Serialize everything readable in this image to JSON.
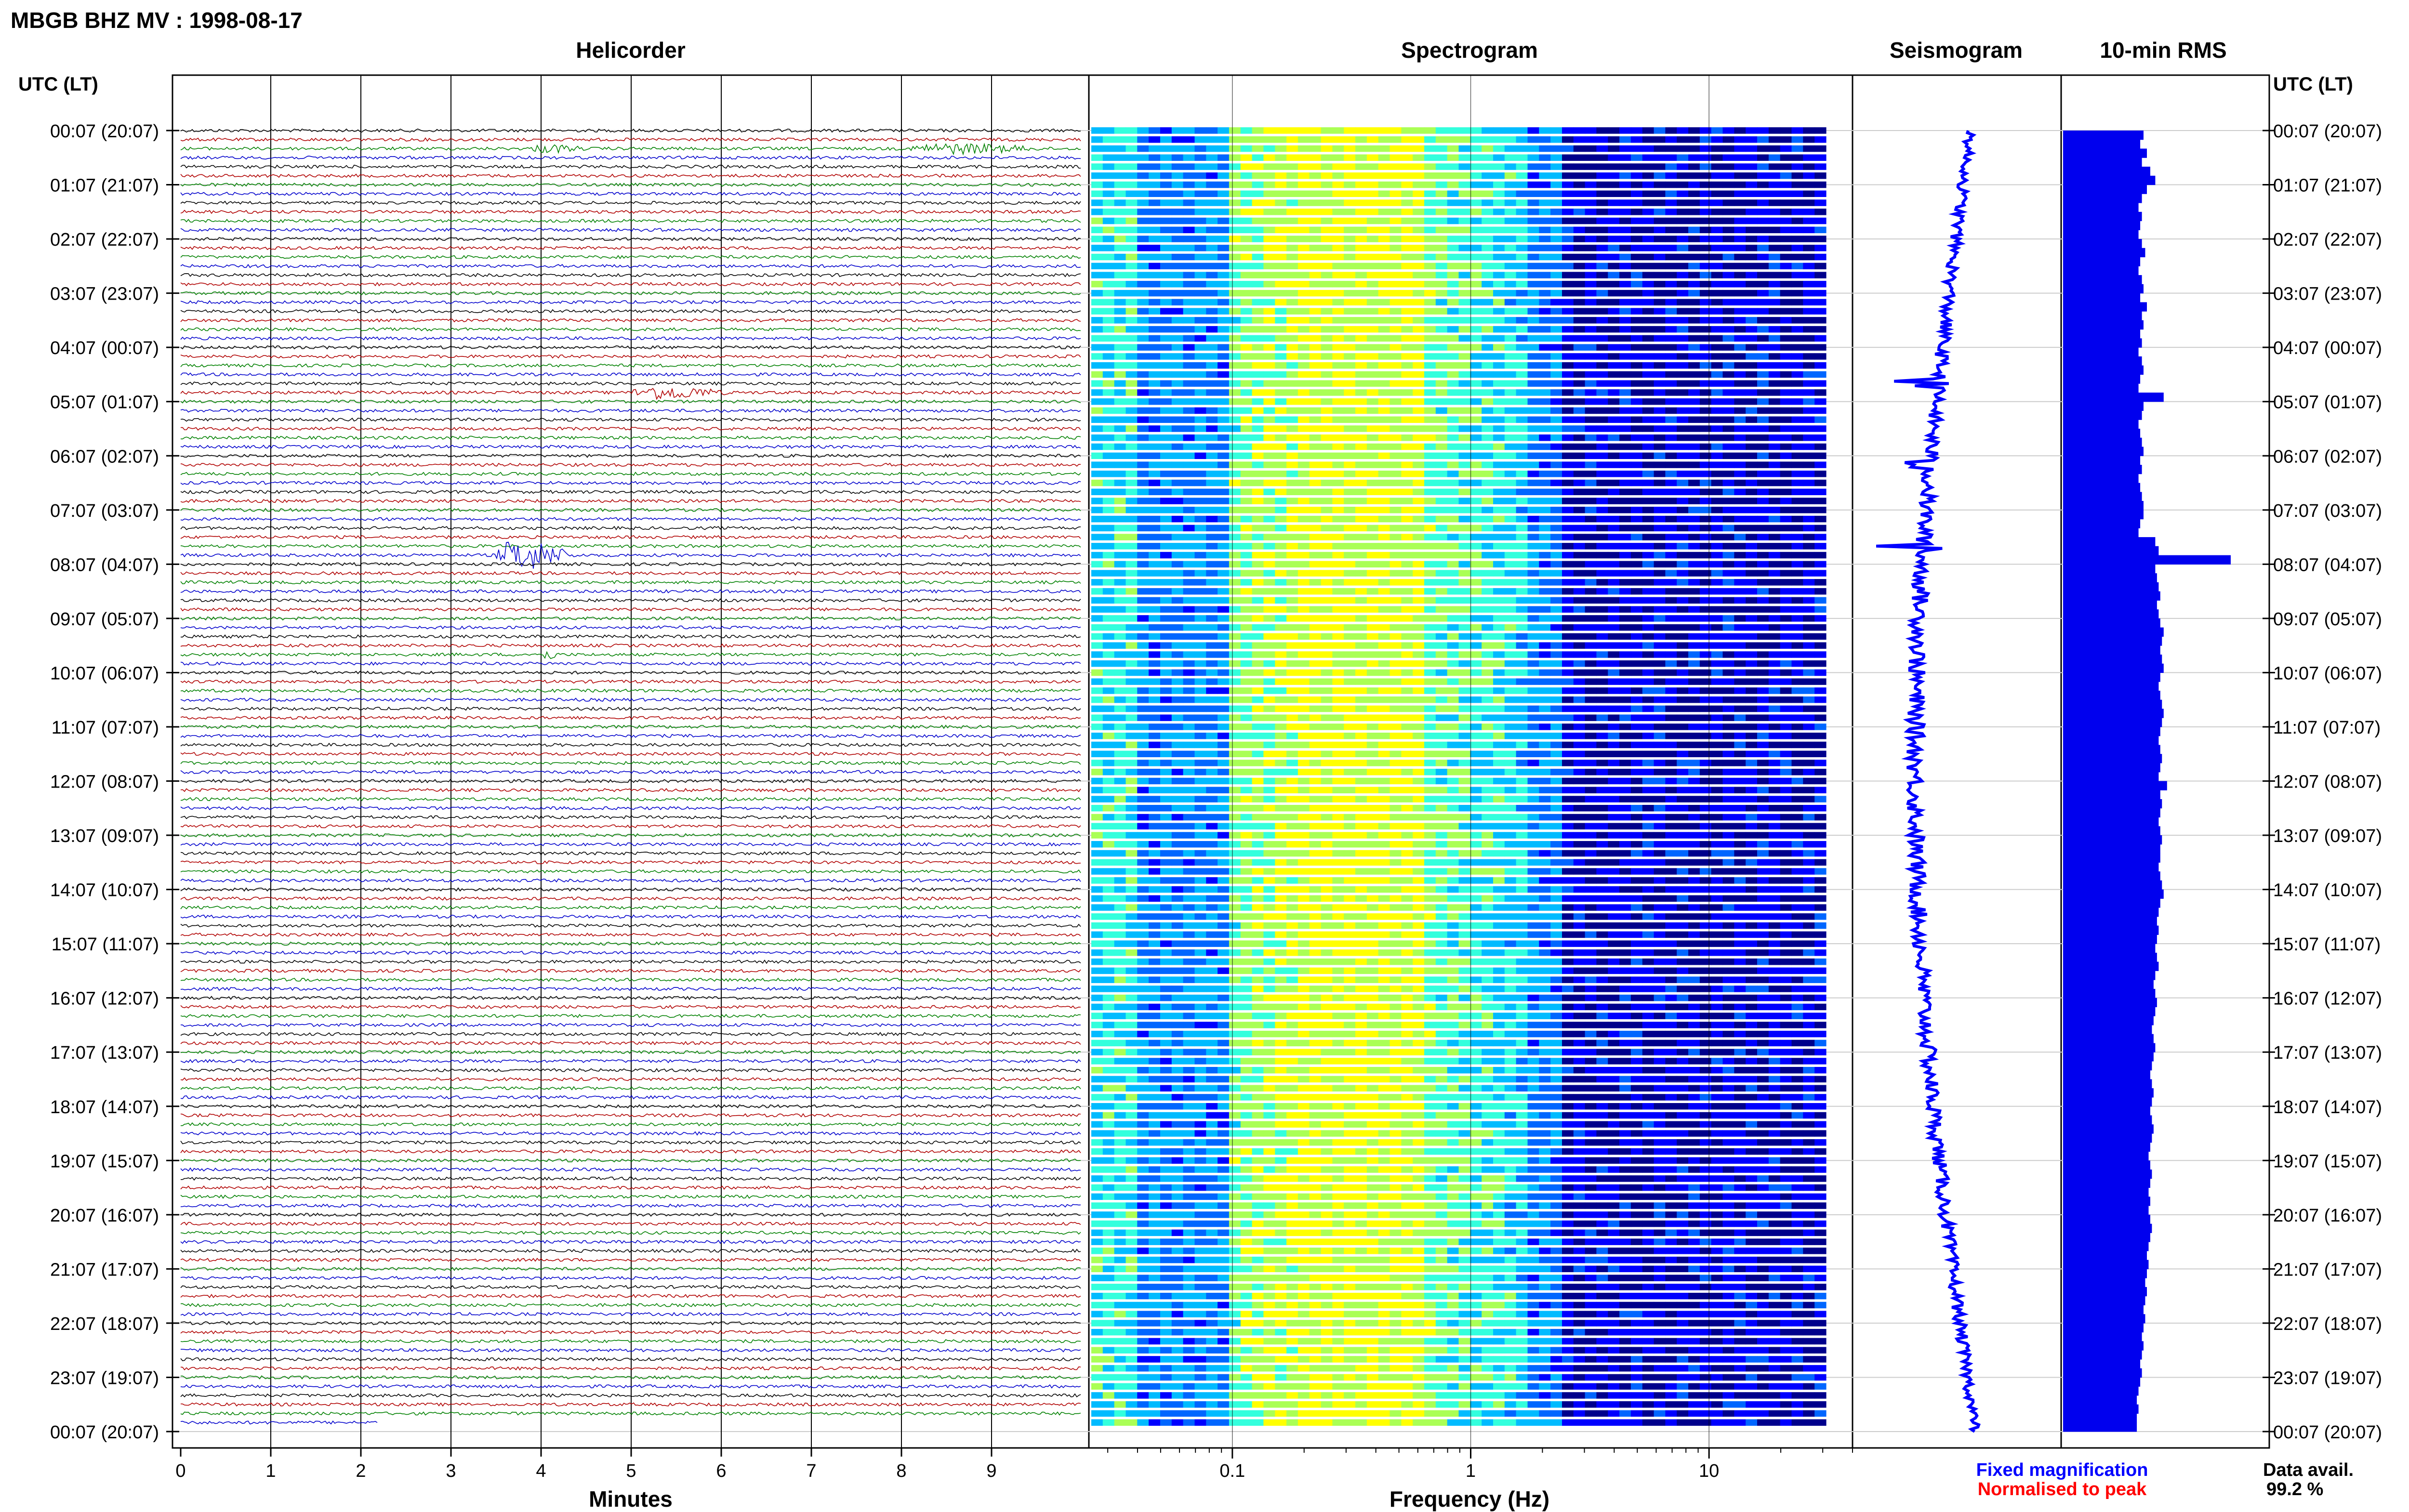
{
  "header": {
    "title": "MBGB BHZ MV : 1998-08-17"
  },
  "time_axis": {
    "header": "UTC (LT)",
    "labels": [
      "00:07 (20:07)",
      "01:07 (21:07)",
      "02:07 (22:07)",
      "03:07 (23:07)",
      "04:07 (00:07)",
      "05:07 (01:07)",
      "06:07 (02:07)",
      "07:07 (03:07)",
      "08:07 (04:07)",
      "09:07 (05:07)",
      "10:07 (06:07)",
      "11:07 (07:07)",
      "12:07 (08:07)",
      "13:07 (09:07)",
      "14:07 (10:07)",
      "15:07 (11:07)",
      "16:07 (12:07)",
      "17:07 (13:07)",
      "18:07 (14:07)",
      "19:07 (15:07)",
      "20:07 (16:07)",
      "21:07 (17:07)",
      "22:07 (18:07)",
      "23:07 (19:07)",
      "00:07 (20:07)"
    ]
  },
  "legend": {
    "fixed": "Fixed magnification",
    "normalised": "Normalised to peak",
    "fixed_color": "#0000ff",
    "normalised_color": "#ff0000"
  },
  "data_avail": {
    "label": "Data avail.",
    "value": "99.2 %"
  },
  "chart_data": [
    {
      "type": "line",
      "panel": "helicorder",
      "title": "Helicorder",
      "xlabel": "Minutes",
      "xlim": [
        0,
        10
      ],
      "ticks": [
        "0",
        "1",
        "2",
        "3",
        "4",
        "5",
        "6",
        "7",
        "8",
        "9"
      ],
      "rows_per_hour": 6,
      "total_rows": 144,
      "trace_colors": [
        "#000000",
        "#b00000",
        "#008000",
        "#0000cc"
      ],
      "events": [
        {
          "row": 2,
          "minute": 3.9,
          "duration": 0.6,
          "amp": 2.2
        },
        {
          "row": 2,
          "minute": 8.1,
          "duration": 1.5,
          "amp": 3.0
        },
        {
          "row": 29,
          "minute": 5.0,
          "duration": 1.1,
          "amp": 4.0
        },
        {
          "row": 47,
          "minute": 3.5,
          "duration": 0.9,
          "amp": 10.0
        },
        {
          "row": 58,
          "minute": 4.0,
          "duration": 0.2,
          "amp": 3.0
        }
      ]
    },
    {
      "type": "heatmap",
      "panel": "spectrogram",
      "title": "Spectrogram",
      "xlabel": "Frequency (Hz)",
      "scale": "log",
      "xlim": [
        0.025,
        40
      ],
      "ticks": [
        0.1,
        1,
        10
      ],
      "tick_labels": [
        "0.1",
        "1",
        "10"
      ],
      "rows": 144,
      "colormap": [
        "#00008c",
        "#0000ff",
        "#0066ff",
        "#00bbff",
        "#33ffdd",
        "#aaff55",
        "#ffff00"
      ]
    },
    {
      "type": "line",
      "panel": "seismogram",
      "title": "Seismogram",
      "note": "one sample per 10-min row; center drift shown",
      "events": [
        {
          "row": 28,
          "amp": 1.6
        },
        {
          "row": 37,
          "amp": 1.2
        },
        {
          "row": 46,
          "amp": 3.0
        }
      ]
    },
    {
      "type": "bar",
      "panel": "rms",
      "title": "10-min RMS",
      "rows": 144,
      "values": [
        0.48,
        0.46,
        0.5,
        0.47,
        0.52,
        0.55,
        0.5,
        0.47,
        0.45,
        0.47,
        0.46,
        0.45,
        0.47,
        0.49,
        0.46,
        0.45,
        0.47,
        0.48,
        0.46,
        0.5,
        0.47,
        0.48,
        0.46,
        0.47,
        0.45,
        0.47,
        0.48,
        0.46,
        0.45,
        0.6,
        0.48,
        0.47,
        0.45,
        0.46,
        0.47,
        0.48,
        0.46,
        0.47,
        0.45,
        0.46,
        0.47,
        0.48,
        0.48,
        0.46,
        0.45,
        0.55,
        0.57,
        1.0,
        0.55,
        0.56,
        0.57,
        0.58,
        0.56,
        0.57,
        0.58,
        0.6,
        0.59,
        0.58,
        0.59,
        0.6,
        0.58,
        0.57,
        0.58,
        0.59,
        0.6,
        0.59,
        0.58,
        0.57,
        0.58,
        0.59,
        0.58,
        0.57,
        0.62,
        0.58,
        0.59,
        0.58,
        0.57,
        0.58,
        0.59,
        0.58,
        0.58,
        0.57,
        0.58,
        0.59,
        0.6,
        0.58,
        0.57,
        0.56,
        0.57,
        0.56,
        0.55,
        0.56,
        0.57,
        0.55,
        0.54,
        0.55,
        0.56,
        0.55,
        0.54,
        0.53,
        0.54,
        0.55,
        0.54,
        0.53,
        0.52,
        0.53,
        0.54,
        0.53,
        0.52,
        0.53,
        0.54,
        0.53,
        0.52,
        0.51,
        0.52,
        0.53,
        0.52,
        0.51,
        0.52,
        0.51,
        0.52,
        0.53,
        0.52,
        0.51,
        0.5,
        0.51,
        0.5,
        0.49,
        0.5,
        0.49,
        0.48,
        0.49,
        0.48,
        0.47,
        0.48,
        0.47,
        0.46,
        0.47,
        0.46,
        0.45,
        0.44,
        0.45,
        0.44,
        0.44
      ],
      "color": "#0000ee"
    }
  ]
}
